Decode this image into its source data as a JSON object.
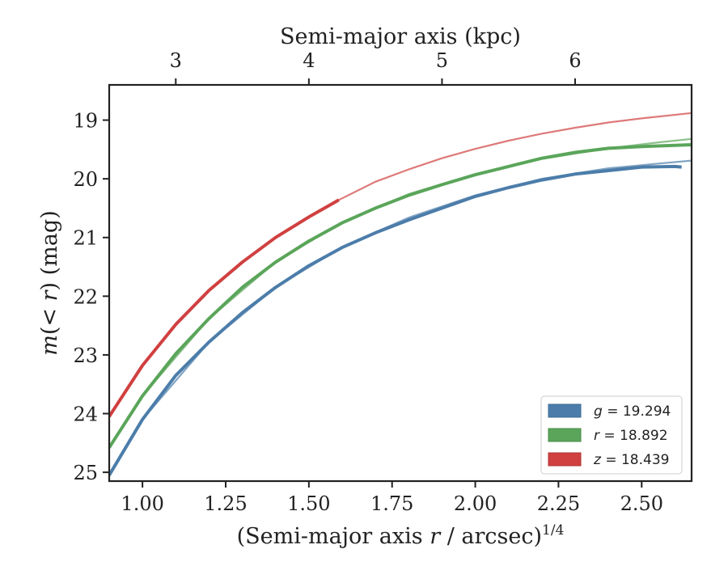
{
  "chart_data": {
    "type": "line",
    "title": "",
    "xlabel_main": "(Semi-major axis",
    "xlabel_var": "r",
    "xlabel_tail": "/ arcsec)",
    "xlabel_exp": "1/4",
    "ylabel_m": "m",
    "ylabel_mid": "(< ",
    "ylabel_r": "r",
    "ylabel_tail": ") (mag)",
    "top_xlabel": "Semi-major axis (kpc)",
    "xlim": [
      0.9,
      2.65
    ],
    "ylim": [
      25.15,
      18.4
    ],
    "y_inverted": true,
    "x_ticks": [
      1.0,
      1.25,
      1.5,
      1.75,
      2.0,
      2.25,
      2.5
    ],
    "x_tick_labels": [
      "1.00",
      "1.25",
      "1.50",
      "1.75",
      "2.00",
      "2.25",
      "2.50"
    ],
    "y_ticks": [
      19,
      20,
      21,
      22,
      23,
      24,
      25
    ],
    "y_tick_labels": [
      "19",
      "20",
      "21",
      "22",
      "23",
      "24",
      "25"
    ],
    "top_ticks": [
      3,
      4,
      5,
      6
    ],
    "top_tick_labels": [
      "3",
      "4",
      "5",
      "6"
    ],
    "top_tick_positions_x": [
      1.1,
      1.5,
      1.9,
      2.3
    ],
    "legend_placement": "lower-right",
    "grid": false,
    "series": [
      {
        "name": "g",
        "legend_label_var": "g",
        "legend_label_value": " = 19.294",
        "color": "#4c7daa",
        "x": [
          0.9,
          1.0,
          1.1,
          1.2,
          1.3,
          1.4,
          1.5,
          1.6,
          1.7,
          1.8,
          1.9,
          2.0,
          2.1,
          2.2,
          2.3,
          2.4,
          2.5,
          2.6,
          2.62
        ],
        "y": [
          25.05,
          24.1,
          23.35,
          22.78,
          22.28,
          21.85,
          21.48,
          21.17,
          20.92,
          20.7,
          20.5,
          20.3,
          20.15,
          20.02,
          19.92,
          19.86,
          19.8,
          19.79,
          19.8
        ],
        "model_x": [
          0.9,
          1.0,
          1.2,
          1.4,
          1.6,
          1.8,
          2.0,
          2.2,
          2.4,
          2.55,
          2.65
        ],
        "model_y": [
          25.05,
          24.1,
          22.78,
          21.85,
          21.16,
          20.66,
          20.28,
          20.0,
          19.82,
          19.74,
          19.69
        ]
      },
      {
        "name": "r",
        "legend_label_var": "r",
        "legend_label_value": " = 18.892",
        "color": "#5aa55a",
        "x": [
          0.9,
          1.0,
          1.1,
          1.2,
          1.3,
          1.4,
          1.5,
          1.6,
          1.7,
          1.8,
          1.9,
          2.0,
          2.1,
          2.2,
          2.3,
          2.4,
          2.5,
          2.6,
          2.65
        ],
        "y": [
          24.58,
          23.7,
          22.98,
          22.38,
          21.85,
          21.42,
          21.06,
          20.75,
          20.5,
          20.28,
          20.1,
          19.93,
          19.79,
          19.65,
          19.55,
          19.48,
          19.45,
          19.43,
          19.42
        ],
        "model_x": [
          0.9,
          1.0,
          1.2,
          1.4,
          1.6,
          1.8,
          2.0,
          2.2,
          2.4,
          2.55,
          2.65
        ],
        "model_y": [
          24.58,
          23.7,
          22.38,
          21.42,
          20.74,
          20.26,
          19.92,
          19.66,
          19.48,
          19.38,
          19.32
        ]
      },
      {
        "name": "z",
        "legend_label_var": "z",
        "legend_label_value": " = 18.439",
        "color": "#d04040",
        "x": [
          0.9,
          1.0,
          1.1,
          1.2,
          1.3,
          1.4,
          1.5,
          1.59
        ],
        "y": [
          24.05,
          23.18,
          22.48,
          21.9,
          21.42,
          21.0,
          20.65,
          20.36
        ],
        "model_x": [
          1.59,
          1.7,
          1.8,
          1.9,
          2.0,
          2.1,
          2.2,
          2.3,
          2.4,
          2.5,
          2.65
        ],
        "model_y": [
          20.36,
          20.05,
          19.84,
          19.65,
          19.49,
          19.35,
          19.23,
          19.13,
          19.04,
          18.97,
          18.88
        ]
      }
    ]
  }
}
